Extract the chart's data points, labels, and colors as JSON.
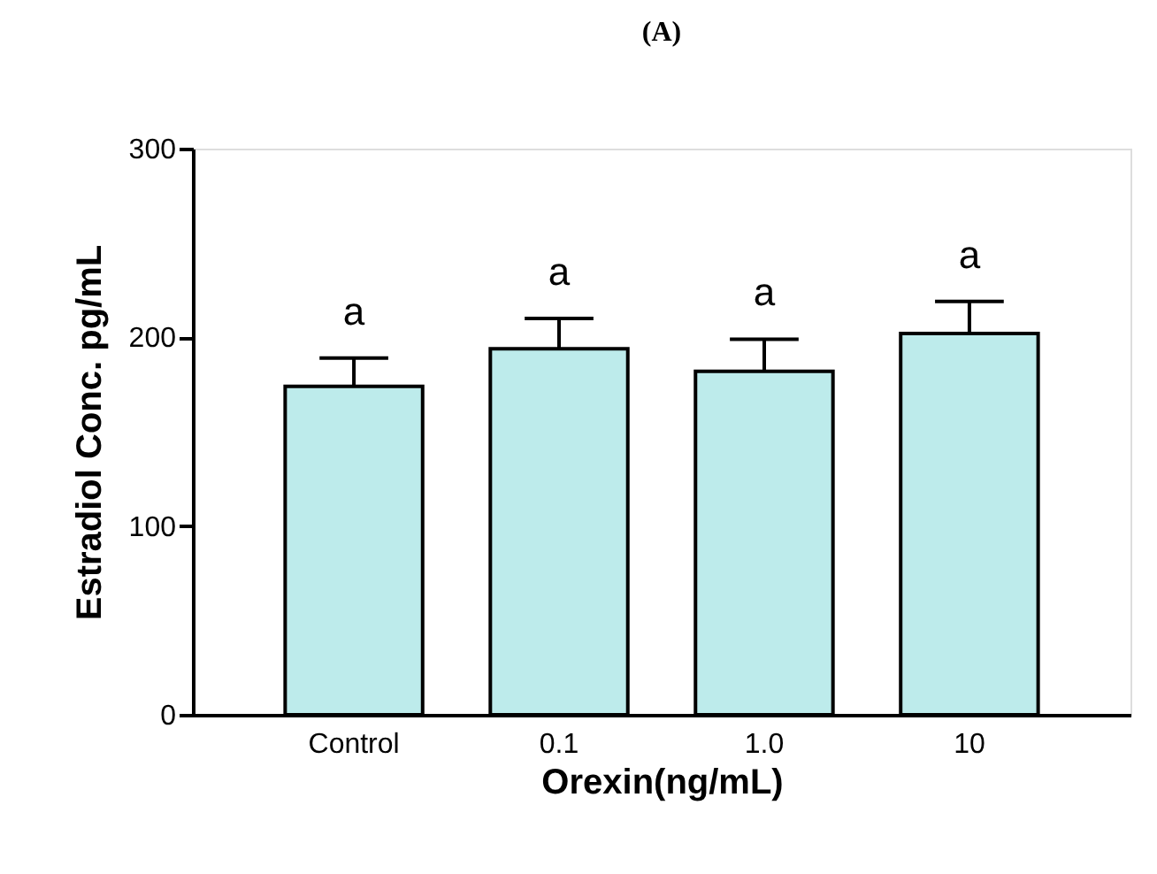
{
  "chart_data": {
    "type": "bar",
    "title": "(A)",
    "xlabel": "Orexin(ng/mL)",
    "ylabel": "Estradiol Conc. pg/mL",
    "categories": [
      "Control",
      "0.1",
      "1.0",
      "10"
    ],
    "values": [
      174,
      194,
      182,
      202
    ],
    "errors": [
      [
        174,
        189
      ],
      [
        194,
        210
      ],
      [
        182,
        199
      ],
      [
        202,
        219
      ]
    ],
    "color": "#bdebeb",
    "ylim": [
      0,
      300
    ],
    "yticks": [
      0,
      100,
      200,
      300
    ],
    "grid": false,
    "annotations": [
      "a",
      "a",
      "a",
      "a"
    ]
  }
}
